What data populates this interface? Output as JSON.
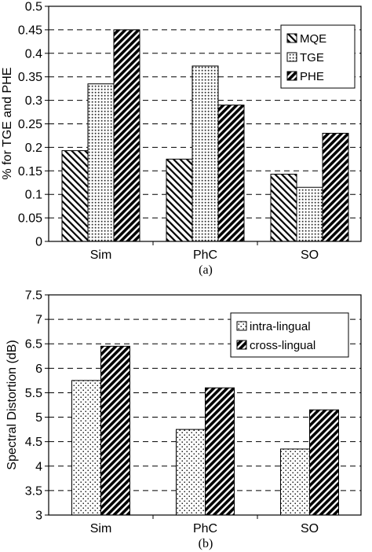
{
  "chart_data": [
    {
      "type": "bar",
      "caption": "(a)",
      "categories": [
        "Sim",
        "PhC",
        "SO"
      ],
      "ylabel": "% for TGE and PHE",
      "xlabel": "",
      "ylim": [
        0,
        0.5
      ],
      "yticks": [
        "0",
        "0.05",
        "0.1",
        "0.15",
        "0.2",
        "0.25",
        "0.3",
        "0.35",
        "0.4",
        "0.45",
        "0.5"
      ],
      "grid": true,
      "legend_position": "top-right",
      "series": [
        {
          "name": "MQE",
          "pattern": "diag-back",
          "values": [
            0.193,
            0.175,
            0.143
          ]
        },
        {
          "name": "TGE",
          "pattern": "dense-dots",
          "values": [
            0.335,
            0.373,
            0.115
          ]
        },
        {
          "name": "PHE",
          "pattern": "diag-fwd",
          "values": [
            0.45,
            0.29,
            0.23
          ]
        }
      ]
    },
    {
      "type": "bar",
      "caption": "(b)",
      "categories": [
        "Sim",
        "PhC",
        "SO"
      ],
      "ylabel": "Spectral Distortion (dB)",
      "xlabel": "",
      "ylim": [
        3,
        7.5
      ],
      "yticks": [
        "3",
        "3.5",
        "4",
        "4.5",
        "5",
        "5.5",
        "6",
        "6.5",
        "7",
        "7.5"
      ],
      "grid": true,
      "legend_position": "top-right",
      "series": [
        {
          "name": "intra-lingual",
          "pattern": "sparse-dots",
          "values": [
            5.75,
            4.75,
            4.35
          ]
        },
        {
          "name": "cross-lingual",
          "pattern": "diag-fwd",
          "values": [
            6.45,
            5.6,
            5.15
          ]
        }
      ]
    }
  ]
}
